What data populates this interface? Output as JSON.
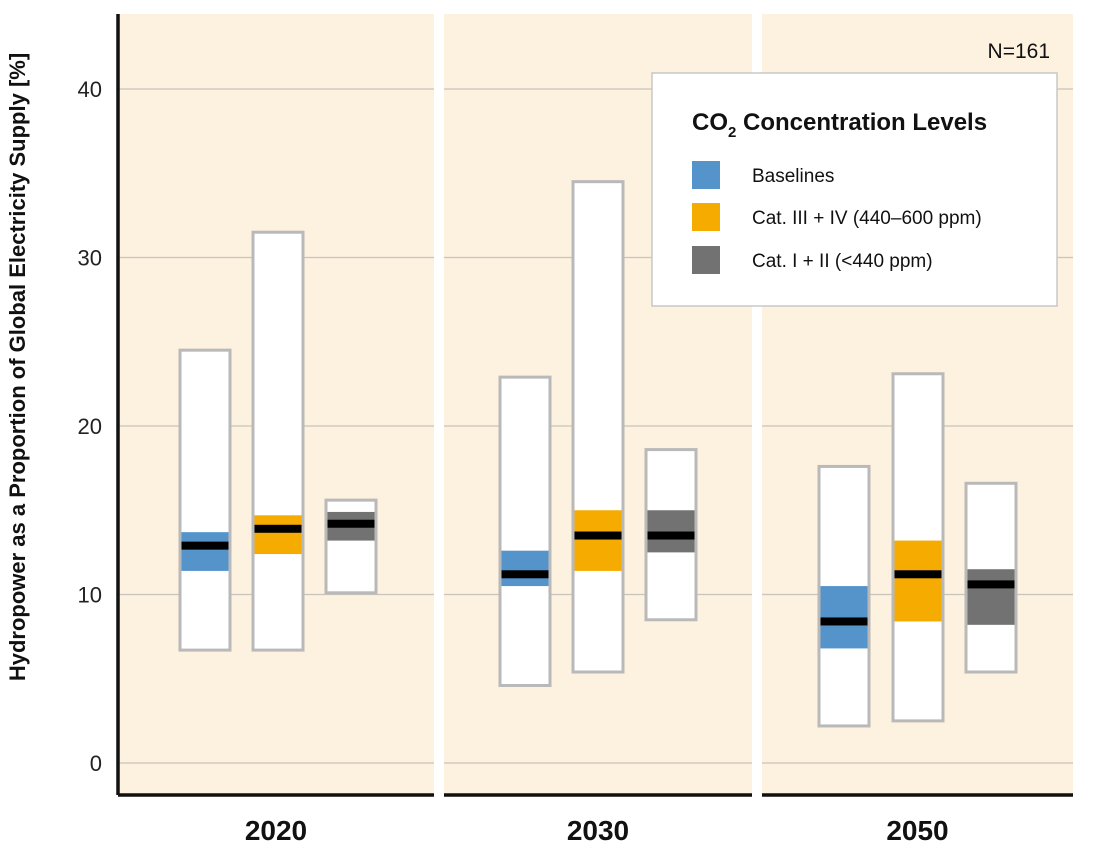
{
  "chart_data": {
    "type": "box",
    "ylabel": "Hydropower as a Proportion of Global Electricity Supply [%]",
    "ylim": [
      0,
      44
    ],
    "yticks": [
      0,
      10,
      20,
      30,
      40
    ],
    "grid": true,
    "panels": [
      "2020",
      "2030",
      "2050"
    ],
    "note": "N=161",
    "legend": {
      "title_main": "CO",
      "title_sub": "2",
      "title_rest": " Concentration Levels",
      "placement": "top-right",
      "entries": [
        {
          "label": "Baselines",
          "color": "#5593cb"
        },
        {
          "label": "Cat. III + IV (440–600 ppm)",
          "color": "#f6ab00"
        },
        {
          "label": "Cat. I + II (<440 ppm)",
          "color": "#727272"
        }
      ]
    },
    "series": [
      {
        "name": "Baselines",
        "color": "#5593cb",
        "values": [
          {
            "panel": "2020",
            "min": 6.7,
            "q1": 11.4,
            "median": 12.9,
            "q3": 13.7,
            "max": 24.5
          },
          {
            "panel": "2030",
            "min": 4.6,
            "q1": 10.5,
            "median": 11.2,
            "q3": 12.6,
            "max": 22.9
          },
          {
            "panel": "2050",
            "min": 2.2,
            "q1": 6.8,
            "median": 8.4,
            "q3": 10.5,
            "max": 17.6
          }
        ]
      },
      {
        "name": "Cat. III + IV (440–600 ppm)",
        "color": "#f6ab00",
        "values": [
          {
            "panel": "2020",
            "min": 6.7,
            "q1": 12.4,
            "median": 13.9,
            "q3": 14.7,
            "max": 31.5
          },
          {
            "panel": "2030",
            "min": 5.4,
            "q1": 11.4,
            "median": 13.5,
            "q3": 15.0,
            "max": 34.5
          },
          {
            "panel": "2050",
            "min": 2.5,
            "q1": 8.4,
            "median": 11.2,
            "q3": 13.2,
            "max": 23.1
          }
        ]
      },
      {
        "name": "Cat. I + II (<440 ppm)",
        "color": "#727272",
        "values": [
          {
            "panel": "2020",
            "min": 10.1,
            "q1": 13.2,
            "median": 14.2,
            "q3": 14.9,
            "max": 15.6
          },
          {
            "panel": "2030",
            "min": 8.5,
            "q1": 12.5,
            "median": 13.5,
            "q3": 15.0,
            "max": 18.6
          },
          {
            "panel": "2050",
            "min": 5.4,
            "q1": 8.2,
            "median": 10.6,
            "q3": 11.5,
            "max": 16.6
          }
        ]
      }
    ]
  }
}
